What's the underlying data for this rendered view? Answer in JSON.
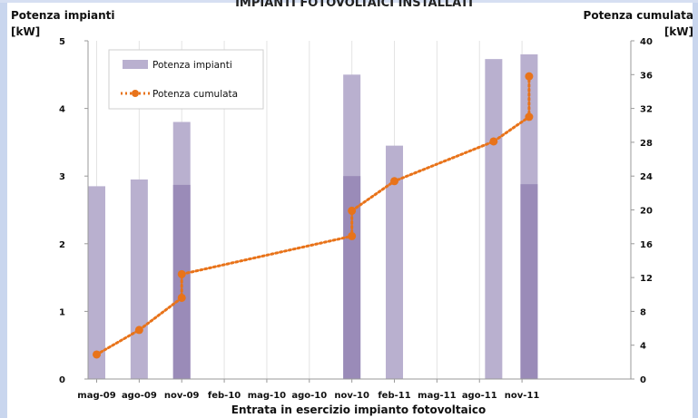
{
  "chart_data": {
    "type": "bar",
    "title": "IMPIANTI FOTOVOLTAICI INSTALLATI",
    "xlabel": "Entrata in esercizio impianto fotovoltaico",
    "ylabel_left_line1": "Potenza impianti",
    "ylabel_left_line2": "[kW]",
    "ylabel_right_line1": "Potenza cumulata",
    "ylabel_right_line2": "[kW]",
    "x_ticks": [
      "mag-09",
      "ago-09",
      "nov-09",
      "feb-10",
      "mag-10",
      "ago-10",
      "nov-10",
      "feb-11",
      "mag-11",
      "ago-11",
      "nov-11"
    ],
    "ylim_left": [
      0,
      5
    ],
    "yticks_left": [
      "0",
      "1",
      "2",
      "3",
      "4",
      "5"
    ],
    "ylim_right": [
      0,
      40
    ],
    "yticks_right": [
      "0",
      "4",
      "8",
      "12",
      "16",
      "20",
      "24",
      "28",
      "32",
      "36",
      "40"
    ],
    "legend_position": "top-left",
    "colors": {
      "bar": "#b9b0cf",
      "bar_overlap": "#9a8bb8",
      "line": "#e8731a"
    },
    "series": [
      {
        "name": "Potenza impianti",
        "kind": "bar",
        "axis": "left",
        "bars": [
          {
            "month": 0,
            "values": [
              2.85
            ]
          },
          {
            "month": 3,
            "values": [
              2.95
            ]
          },
          {
            "month": 6,
            "values": [
              3.8,
              2.87
            ]
          },
          {
            "month": 18,
            "values": [
              4.5,
              3.0
            ]
          },
          {
            "month": 21,
            "values": [
              3.45
            ]
          },
          {
            "month": 28,
            "values": [
              4.73
            ]
          },
          {
            "month": 30.5,
            "values": [
              4.8,
              2.88
            ]
          }
        ]
      },
      {
        "name": "Potenza cumulata",
        "kind": "line",
        "axis": "right",
        "points": [
          {
            "month": 0,
            "value": 2.9
          },
          {
            "month": 3,
            "value": 5.8
          },
          {
            "month": 6,
            "value": 9.6
          },
          {
            "month": 6,
            "value": 12.4
          },
          {
            "month": 18,
            "value": 16.9
          },
          {
            "month": 18,
            "value": 19.9
          },
          {
            "month": 21,
            "value": 23.4
          },
          {
            "month": 28,
            "value": 28.1
          },
          {
            "month": 30.5,
            "value": 31.0
          },
          {
            "month": 30.5,
            "value": 35.8
          }
        ]
      }
    ]
  }
}
